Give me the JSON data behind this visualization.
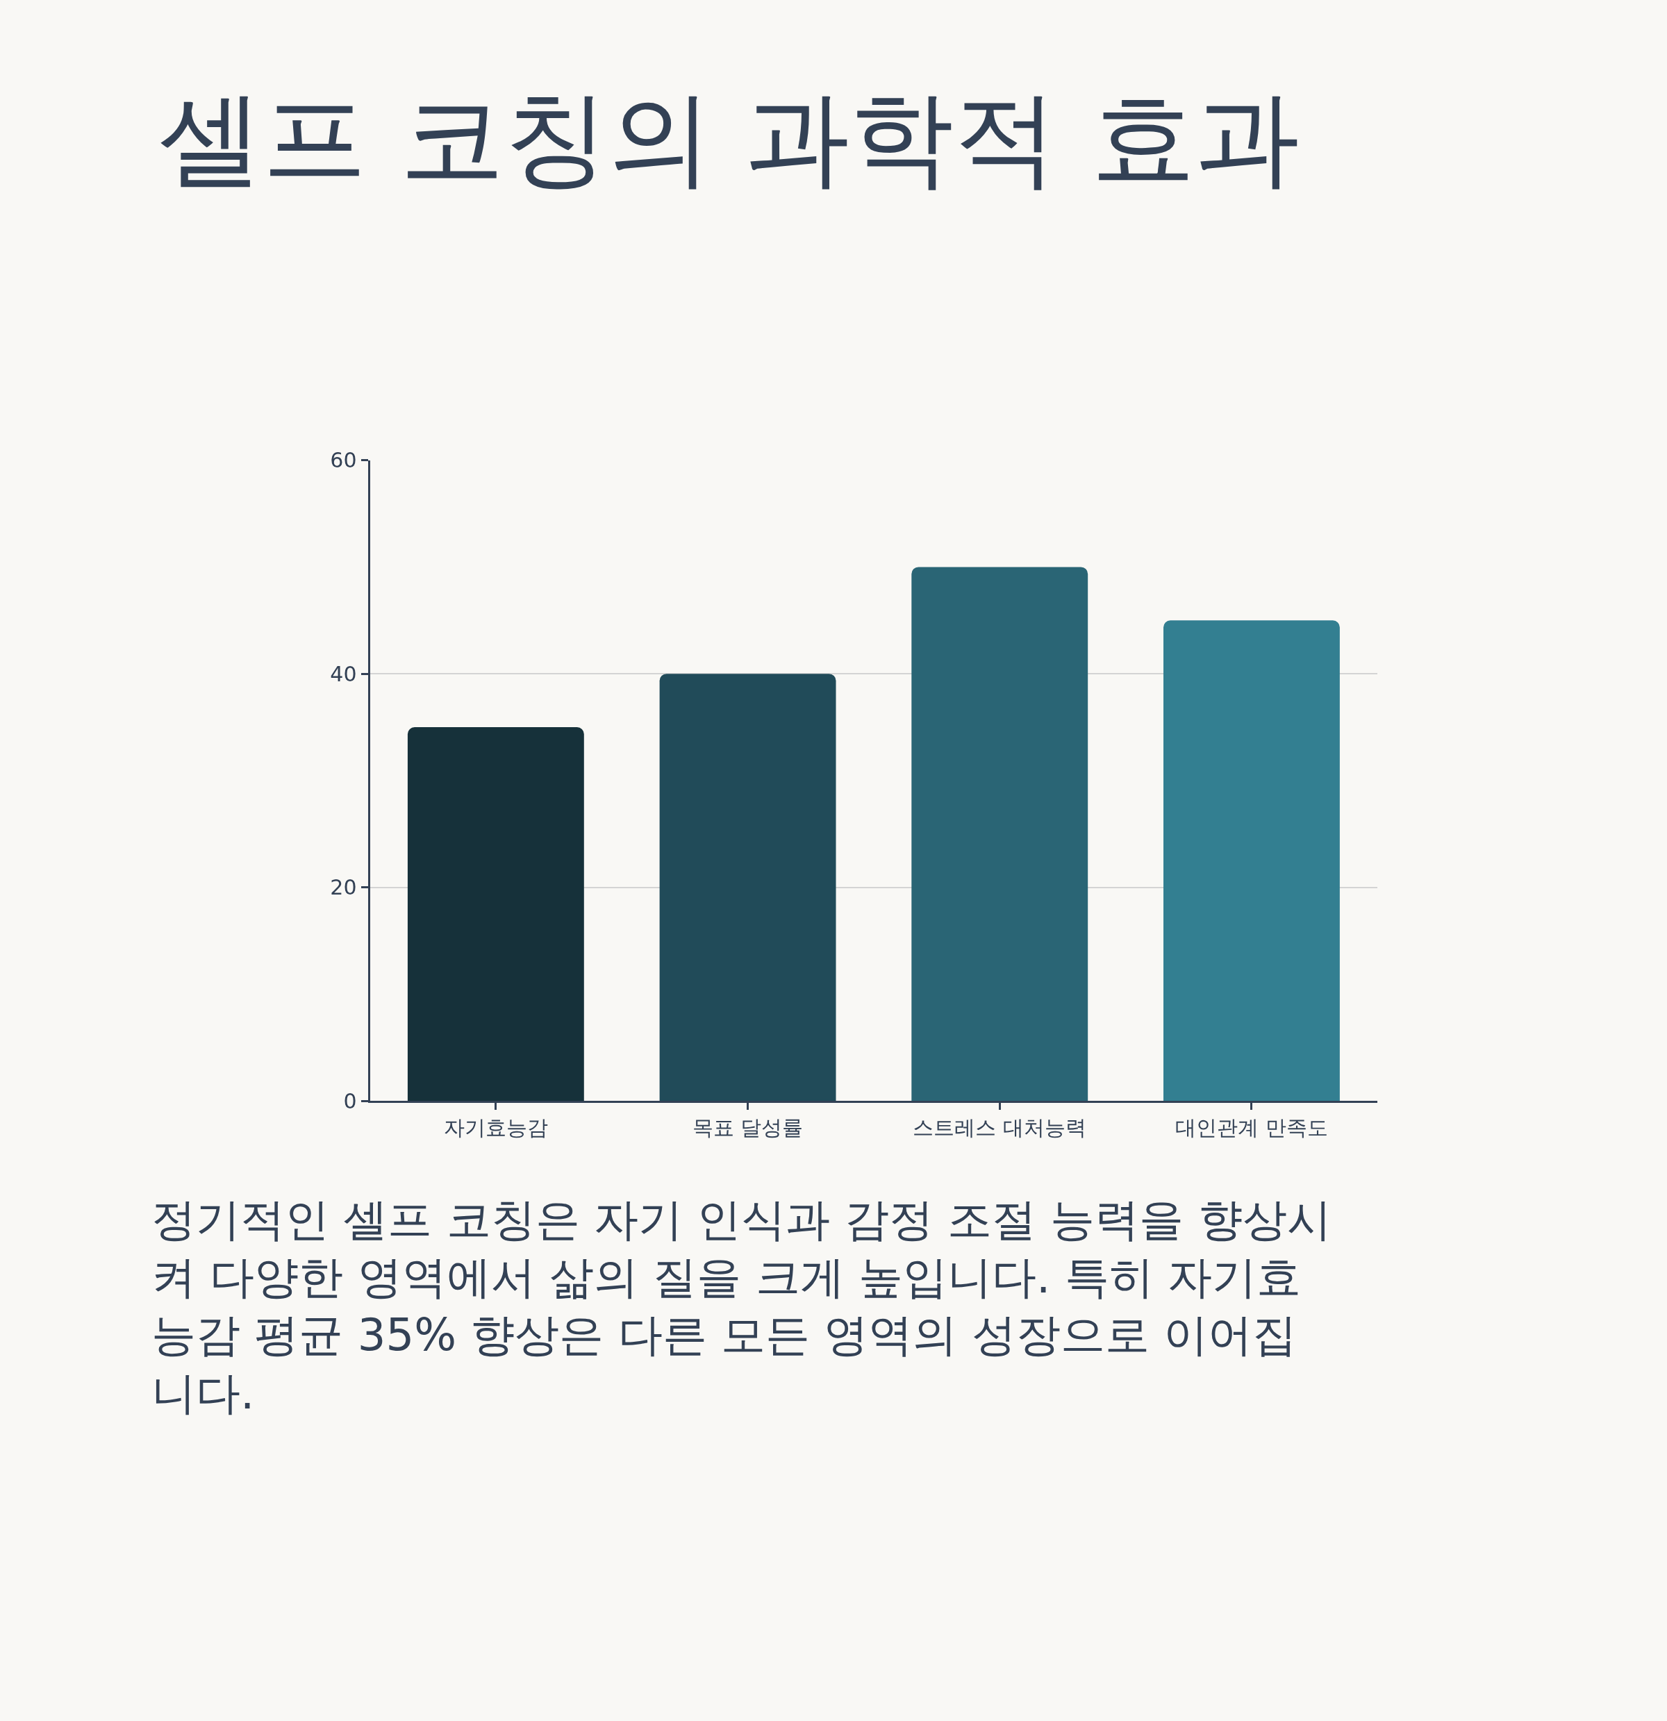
{
  "chart_data": {
    "type": "bar",
    "title": "셀프 코칭의 과학적 효과",
    "categories": [
      "자기효능감",
      "목표 달성률",
      "스트레스 대처능력",
      "대인관계 만족도"
    ],
    "values": [
      35,
      40,
      50,
      45
    ],
    "colors": [
      "#16313a",
      "#214b59",
      "#2a6575",
      "#337f91"
    ],
    "ylim": [
      0,
      60
    ],
    "yticks": [
      0,
      20,
      40,
      60
    ],
    "grid": "y",
    "annotations": [
      "정기적인 셀프 코칭은 자기 인식과 감정 조절 능력을 향상시켜 다양한 영역에서 삶의 질을 크게 높입니다. 특히 자기효능감 평균 35% 향상은 다른 모든 영역의 성장으로 이어집니다."
    ]
  }
}
